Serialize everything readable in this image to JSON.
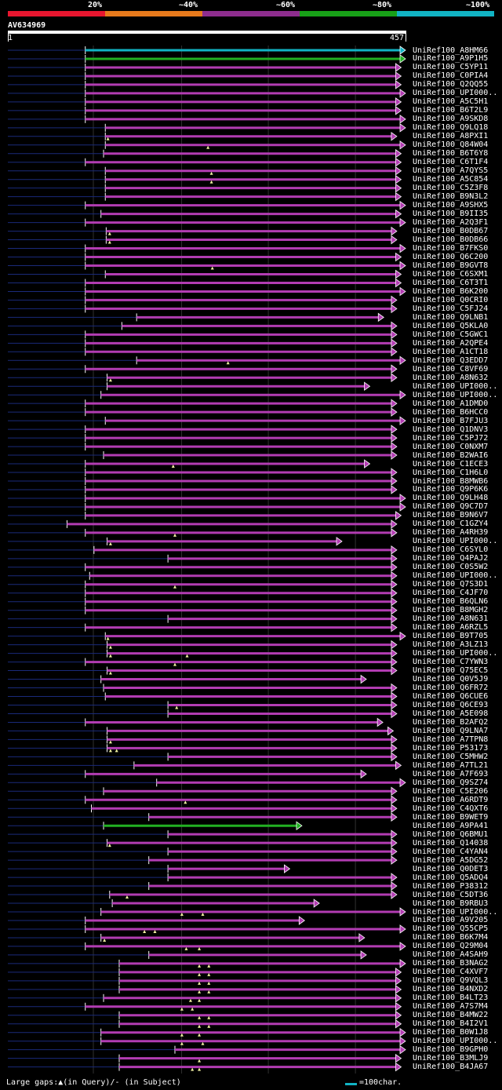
{
  "legend": {
    "labels": [
      "20%",
      "~40%",
      "~60%",
      "~80%",
      "~100%"
    ],
    "colors": [
      "#e8162f",
      "#e87a1c",
      "#8e2d8e",
      "#18a018",
      "#11b3c4"
    ]
  },
  "query": {
    "id": "AV634969",
    "length": 457,
    "start_label": "1",
    "end_label": "457"
  },
  "colors": {
    "magenta": "#b23cb2",
    "green": "#22b022",
    "cyan": "#11b3c4",
    "navy": "#1a2a7a",
    "gap": "#f0f0a0"
  },
  "hits": [
    {
      "label": "UniRef100_A8HM66",
      "color": "cyan",
      "start": 89,
      "end": 457,
      "arrow": true,
      "gaps": []
    },
    {
      "label": "UniRef100_A9P1H5",
      "color": "green",
      "start": 89,
      "end": 457,
      "arrow": true,
      "gaps": []
    },
    {
      "label": "UniRef100_C5YP11",
      "color": "magenta",
      "start": 89,
      "end": 452,
      "arrow": true,
      "gaps": []
    },
    {
      "label": "UniRef100_C0PIA4",
      "color": "magenta",
      "start": 89,
      "end": 452,
      "arrow": true,
      "gaps": []
    },
    {
      "label": "UniRef100_Q2QQ55",
      "color": "magenta",
      "start": 89,
      "end": 452,
      "arrow": true,
      "gaps": []
    },
    {
      "label": "UniRef100_UPI000..",
      "color": "magenta",
      "start": 89,
      "end": 457,
      "arrow": true,
      "gaps": []
    },
    {
      "label": "UniRef100_A5C5H1",
      "color": "magenta",
      "start": 89,
      "end": 452,
      "arrow": true,
      "gaps": []
    },
    {
      "label": "UniRef100_B6T2L9",
      "color": "magenta",
      "start": 89,
      "end": 452,
      "arrow": true,
      "gaps": []
    },
    {
      "label": "UniRef100_A9SKD8",
      "color": "magenta",
      "start": 89,
      "end": 457,
      "arrow": true,
      "gaps": []
    },
    {
      "label": "UniRef100_Q9LQ18",
      "color": "magenta",
      "start": 112,
      "end": 457,
      "arrow": true,
      "gaps": []
    },
    {
      "label": "UniRef100_A8PXI1",
      "color": "magenta",
      "start": 112,
      "end": 447,
      "arrow": true,
      "gaps": [
        115
      ]
    },
    {
      "label": "UniRef100_Q84W04",
      "color": "magenta",
      "start": 112,
      "end": 457,
      "arrow": true,
      "gaps": [
        230
      ]
    },
    {
      "label": "UniRef100_B6T6Y8",
      "color": "magenta",
      "start": 110,
      "end": 452,
      "arrow": true,
      "gaps": []
    },
    {
      "label": "UniRef100_C6T1F4",
      "color": "magenta",
      "start": 89,
      "end": 452,
      "arrow": true,
      "gaps": []
    },
    {
      "label": "UniRef100_A7QYS5",
      "color": "magenta",
      "start": 112,
      "end": 452,
      "arrow": true,
      "gaps": [
        234
      ]
    },
    {
      "label": "UniRef100_A5C854",
      "color": "magenta",
      "start": 112,
      "end": 452,
      "arrow": true,
      "gaps": [
        234
      ]
    },
    {
      "label": "UniRef100_C5Z3F8",
      "color": "magenta",
      "start": 112,
      "end": 452,
      "arrow": true,
      "gaps": []
    },
    {
      "label": "UniRef100_B9N3L2",
      "color": "magenta",
      "start": 112,
      "end": 452,
      "arrow": true,
      "gaps": []
    },
    {
      "label": "UniRef100_A9SHX5",
      "color": "magenta",
      "start": 89,
      "end": 457,
      "arrow": true,
      "gaps": []
    },
    {
      "label": "UniRef100_B9II35",
      "color": "magenta",
      "start": 107,
      "end": 452,
      "arrow": true,
      "gaps": []
    },
    {
      "label": "UniRef100_A2Q3F1",
      "color": "magenta",
      "start": 89,
      "end": 457,
      "arrow": true,
      "gaps": []
    },
    {
      "label": "UniRef100_B0DB67",
      "color": "magenta",
      "start": 113,
      "end": 447,
      "arrow": true,
      "gaps": [
        117
      ]
    },
    {
      "label": "UniRef100_B0DB66",
      "color": "magenta",
      "start": 113,
      "end": 447,
      "arrow": true,
      "gaps": [
        117
      ]
    },
    {
      "label": "UniRef100_B7FKS0",
      "color": "magenta",
      "start": 89,
      "end": 457,
      "arrow": true,
      "gaps": []
    },
    {
      "label": "UniRef100_Q6C200",
      "color": "magenta",
      "start": 89,
      "end": 452,
      "arrow": true,
      "gaps": []
    },
    {
      "label": "UniRef100_B9GVT8",
      "color": "magenta",
      "start": 89,
      "end": 457,
      "arrow": true,
      "gaps": [
        235
      ]
    },
    {
      "label": "UniRef100_C6SXM1",
      "color": "magenta",
      "start": 112,
      "end": 452,
      "arrow": true,
      "gaps": []
    },
    {
      "label": "UniRef100_C6T3T1",
      "color": "magenta",
      "start": 89,
      "end": 452,
      "arrow": true,
      "gaps": []
    },
    {
      "label": "UniRef100_B6K200",
      "color": "magenta",
      "start": 89,
      "end": 457,
      "arrow": true,
      "gaps": []
    },
    {
      "label": "UniRef100_Q0CRI0",
      "color": "magenta",
      "start": 89,
      "end": 447,
      "arrow": true,
      "gaps": []
    },
    {
      "label": "UniRef100_C5FJ24",
      "color": "magenta",
      "start": 89,
      "end": 447,
      "arrow": true,
      "gaps": []
    },
    {
      "label": "UniRef100_Q9LNB1",
      "color": "magenta",
      "start": 148,
      "end": 432,
      "arrow": true,
      "gaps": []
    },
    {
      "label": "UniRef100_Q5KLA0",
      "color": "magenta",
      "start": 131,
      "end": 447,
      "arrow": true,
      "gaps": []
    },
    {
      "label": "UniRef100_C5GWC1",
      "color": "magenta",
      "start": 89,
      "end": 447,
      "arrow": true,
      "gaps": []
    },
    {
      "label": "UniRef100_A2QPE4",
      "color": "magenta",
      "start": 89,
      "end": 447,
      "arrow": true,
      "gaps": []
    },
    {
      "label": "UniRef100_A1CT18",
      "color": "magenta",
      "start": 89,
      "end": 447,
      "arrow": true,
      "gaps": []
    },
    {
      "label": "UniRef100_Q3EDD7",
      "color": "magenta",
      "start": 148,
      "end": 457,
      "arrow": true,
      "gaps": [
        253
      ]
    },
    {
      "label": "UniRef100_C8VF69",
      "color": "magenta",
      "start": 89,
      "end": 447,
      "arrow": true,
      "gaps": []
    },
    {
      "label": "UniRef100_A8N632",
      "color": "magenta",
      "start": 114,
      "end": 447,
      "arrow": true,
      "gaps": [
        118
      ]
    },
    {
      "label": "UniRef100_UPI000..",
      "color": "magenta",
      "start": 114,
      "end": 416,
      "arrow": true,
      "gaps": []
    },
    {
      "label": "UniRef100_UPI000..",
      "color": "magenta",
      "start": 107,
      "end": 457,
      "arrow": true,
      "gaps": []
    },
    {
      "label": "UniRef100_A1DMD0",
      "color": "magenta",
      "start": 89,
      "end": 447,
      "arrow": true,
      "gaps": []
    },
    {
      "label": "UniRef100_B6HCC0",
      "color": "magenta",
      "start": 89,
      "end": 447,
      "arrow": true,
      "gaps": []
    },
    {
      "label": "UniRef100_B7FJU3",
      "color": "magenta",
      "start": 112,
      "end": 457,
      "arrow": true,
      "gaps": []
    },
    {
      "label": "UniRef100_Q1DNV3",
      "color": "magenta",
      "start": 89,
      "end": 447,
      "arrow": true,
      "gaps": []
    },
    {
      "label": "UniRef100_C5PJ72",
      "color": "magenta",
      "start": 89,
      "end": 447,
      "arrow": true,
      "gaps": []
    },
    {
      "label": "UniRef100_C0NXM7",
      "color": "magenta",
      "start": 89,
      "end": 447,
      "arrow": true,
      "gaps": []
    },
    {
      "label": "UniRef100_B2WAI6",
      "color": "magenta",
      "start": 110,
      "end": 447,
      "arrow": true,
      "gaps": []
    },
    {
      "label": "UniRef100_C1ECE3",
      "color": "magenta",
      "start": 89,
      "end": 416,
      "arrow": true,
      "gaps": [
        190
      ]
    },
    {
      "label": "UniRef100_C1H6L0",
      "color": "magenta",
      "start": 89,
      "end": 447,
      "arrow": true,
      "gaps": []
    },
    {
      "label": "UniRef100_B8MWB6",
      "color": "magenta",
      "start": 89,
      "end": 447,
      "arrow": true,
      "gaps": []
    },
    {
      "label": "UniRef100_Q9P6K6",
      "color": "magenta",
      "start": 89,
      "end": 447,
      "arrow": true,
      "gaps": []
    },
    {
      "label": "UniRef100_Q9LH48",
      "color": "magenta",
      "start": 89,
      "end": 457,
      "arrow": true,
      "gaps": []
    },
    {
      "label": "UniRef100_Q9C7D7",
      "color": "magenta",
      "start": 89,
      "end": 457,
      "arrow": true,
      "gaps": []
    },
    {
      "label": "UniRef100_B9N6V7",
      "color": "magenta",
      "start": 89,
      "end": 452,
      "arrow": true,
      "gaps": []
    },
    {
      "label": "UniRef100_C1GZY4",
      "color": "magenta",
      "start": 68,
      "end": 447,
      "arrow": true,
      "gaps": []
    },
    {
      "label": "UniRef100_A4RH39",
      "color": "magenta",
      "start": 89,
      "end": 447,
      "arrow": true,
      "gaps": [
        192
      ]
    },
    {
      "label": "UniRef100_UPI000..",
      "color": "magenta",
      "start": 114,
      "end": 384,
      "arrow": true,
      "gaps": [
        118
      ]
    },
    {
      "label": "UniRef100_C6SYL0",
      "color": "magenta",
      "start": 99,
      "end": 447,
      "arrow": true,
      "gaps": []
    },
    {
      "label": "UniRef100_Q4PAJ2",
      "color": "magenta",
      "start": 184,
      "end": 447,
      "arrow": true,
      "gaps": []
    },
    {
      "label": "UniRef100_C0S5W2",
      "color": "magenta",
      "start": 89,
      "end": 447,
      "arrow": true,
      "gaps": []
    },
    {
      "label": "UniRef100_UPI000..",
      "color": "magenta",
      "start": 94,
      "end": 447,
      "arrow": true,
      "gaps": []
    },
    {
      "label": "UniRef100_Q7S3D1",
      "color": "magenta",
      "start": 89,
      "end": 447,
      "arrow": true,
      "gaps": [
        192
      ]
    },
    {
      "label": "UniRef100_C4JF70",
      "color": "magenta",
      "start": 89,
      "end": 447,
      "arrow": true,
      "gaps": []
    },
    {
      "label": "UniRef100_B6QLN6",
      "color": "magenta",
      "start": 89,
      "end": 447,
      "arrow": true,
      "gaps": []
    },
    {
      "label": "UniRef100_B8MGH2",
      "color": "magenta",
      "start": 89,
      "end": 447,
      "arrow": true,
      "gaps": []
    },
    {
      "label": "UniRef100_A8N631",
      "color": "magenta",
      "start": 184,
      "end": 447,
      "arrow": true,
      "gaps": []
    },
    {
      "label": "UniRef100_A6RZL5",
      "color": "magenta",
      "start": 89,
      "end": 447,
      "arrow": true,
      "gaps": []
    },
    {
      "label": "UniRef100_B9T705",
      "color": "magenta",
      "start": 112,
      "end": 457,
      "arrow": true,
      "gaps": [
        115
      ]
    },
    {
      "label": "UniRef100_A3LZ13",
      "color": "magenta",
      "start": 114,
      "end": 447,
      "arrow": true,
      "gaps": [
        118
      ]
    },
    {
      "label": "UniRef100_UPI000..",
      "color": "magenta",
      "start": 114,
      "end": 447,
      "arrow": true,
      "gaps": [
        118,
        206
      ]
    },
    {
      "label": "UniRef100_C7YWN3",
      "color": "magenta",
      "start": 89,
      "end": 447,
      "arrow": true,
      "gaps": [
        192
      ]
    },
    {
      "label": "UniRef100_Q75EC5",
      "color": "magenta",
      "start": 114,
      "end": 447,
      "arrow": true,
      "gaps": [
        118
      ]
    },
    {
      "label": "UniRef100_Q0V5J9",
      "color": "magenta",
      "start": 107,
      "end": 412,
      "arrow": true,
      "gaps": []
    },
    {
      "label": "UniRef100_Q6FR72",
      "color": "magenta",
      "start": 110,
      "end": 447,
      "arrow": true,
      "gaps": []
    },
    {
      "label": "UniRef100_Q6CUE6",
      "color": "magenta",
      "start": 112,
      "end": 447,
      "arrow": true,
      "gaps": []
    },
    {
      "label": "UniRef100_Q6CE93",
      "color": "magenta",
      "start": 184,
      "end": 447,
      "arrow": true,
      "gaps": [
        194
      ]
    },
    {
      "label": "UniRef100_A5E098",
      "color": "magenta",
      "start": 184,
      "end": 447,
      "arrow": true,
      "gaps": []
    },
    {
      "label": "UniRef100_B2AFQ2",
      "color": "magenta",
      "start": 89,
      "end": 431,
      "arrow": true,
      "gaps": []
    },
    {
      "label": "UniRef100_Q9LNA7",
      "color": "magenta",
      "start": 114,
      "end": 443,
      "arrow": true,
      "gaps": []
    },
    {
      "label": "UniRef100_A7TPN8",
      "color": "magenta",
      "start": 114,
      "end": 447,
      "arrow": true,
      "gaps": [
        118
      ]
    },
    {
      "label": "UniRef100_P53173",
      "color": "magenta",
      "start": 114,
      "end": 447,
      "arrow": true,
      "gaps": [
        118,
        125
      ]
    },
    {
      "label": "UniRef100_C5MHW2",
      "color": "magenta",
      "start": 184,
      "end": 447,
      "arrow": true,
      "gaps": []
    },
    {
      "label": "UniRef100_A7TL21",
      "color": "magenta",
      "start": 145,
      "end": 452,
      "arrow": true,
      "gaps": []
    },
    {
      "label": "UniRef100_A7F693",
      "color": "magenta",
      "start": 89,
      "end": 412,
      "arrow": true,
      "gaps": []
    },
    {
      "label": "UniRef100_Q9SZ74",
      "color": "magenta",
      "start": 171,
      "end": 457,
      "arrow": true,
      "gaps": []
    },
    {
      "label": "UniRef100_C5E206",
      "color": "magenta",
      "start": 110,
      "end": 447,
      "arrow": true,
      "gaps": []
    },
    {
      "label": "UniRef100_A6RDT9",
      "color": "magenta",
      "start": 89,
      "end": 447,
      "arrow": true,
      "gaps": [
        204
      ]
    },
    {
      "label": "UniRef100_C4QXT6",
      "color": "magenta",
      "start": 96,
      "end": 447,
      "arrow": true,
      "gaps": []
    },
    {
      "label": "UniRef100_B9WET9",
      "color": "magenta",
      "start": 162,
      "end": 447,
      "arrow": true,
      "gaps": []
    },
    {
      "label": "UniRef100_A9PA41",
      "color": "green",
      "start": 110,
      "end": 338,
      "arrow": true,
      "gaps": []
    },
    {
      "label": "UniRef100_Q6BMU1",
      "color": "magenta",
      "start": 184,
      "end": 447,
      "arrow": true,
      "gaps": []
    },
    {
      "label": "UniRef100_Q14038",
      "color": "magenta",
      "start": 114,
      "end": 447,
      "arrow": true,
      "gaps": [
        117
      ]
    },
    {
      "label": "UniRef100_C4YAN4",
      "color": "magenta",
      "start": 184,
      "end": 447,
      "arrow": true,
      "gaps": []
    },
    {
      "label": "UniRef100_A5DG52",
      "color": "magenta",
      "start": 162,
      "end": 447,
      "arrow": true,
      "gaps": []
    },
    {
      "label": "UniRef100_Q0DET3",
      "color": "magenta",
      "start": 184,
      "end": 324,
      "arrow": true,
      "gaps": []
    },
    {
      "label": "UniRef100_Q5ADQ4",
      "color": "magenta",
      "start": 184,
      "end": 447,
      "arrow": true,
      "gaps": []
    },
    {
      "label": "UniRef100_P38312",
      "color": "magenta",
      "start": 162,
      "end": 447,
      "arrow": true,
      "gaps": []
    },
    {
      "label": "UniRef100_C5DT36",
      "color": "magenta",
      "start": 117,
      "end": 447,
      "arrow": true,
      "gaps": [
        137
      ]
    },
    {
      "label": "UniRef100_B9RBU3",
      "color": "magenta",
      "start": 120,
      "end": 358,
      "arrow": true,
      "gaps": []
    },
    {
      "label": "UniRef100_UPI000..",
      "color": "magenta",
      "start": 107,
      "end": 457,
      "arrow": true,
      "gaps": [
        200,
        224
      ]
    },
    {
      "label": "UniRef100_A9V205",
      "color": "magenta",
      "start": 89,
      "end": 341,
      "arrow": true,
      "gaps": []
    },
    {
      "label": "UniRef100_Q55CP5",
      "color": "magenta",
      "start": 89,
      "end": 457,
      "arrow": true,
      "gaps": [
        157,
        169
      ]
    },
    {
      "label": "UniRef100_B6K7M4",
      "color": "magenta",
      "start": 107,
      "end": 410,
      "arrow": true,
      "gaps": [
        111
      ]
    },
    {
      "label": "UniRef100_Q29M04",
      "color": "magenta",
      "start": 89,
      "end": 457,
      "arrow": true,
      "gaps": [
        205,
        220
      ]
    },
    {
      "label": "UniRef100_A4SAH9",
      "color": "magenta",
      "start": 162,
      "end": 412,
      "arrow": true,
      "gaps": []
    },
    {
      "label": "UniRef100_B3NAG2",
      "color": "magenta",
      "start": 128,
      "end": 457,
      "arrow": true,
      "gaps": [
        220,
        231
      ]
    },
    {
      "label": "UniRef100_C4XVF7",
      "color": "magenta",
      "start": 128,
      "end": 452,
      "arrow": true,
      "gaps": [
        220,
        231
      ]
    },
    {
      "label": "UniRef100_Q9VQL3",
      "color": "magenta",
      "start": 128,
      "end": 452,
      "arrow": true,
      "gaps": [
        220,
        231
      ]
    },
    {
      "label": "UniRef100_B4NXD2",
      "color": "magenta",
      "start": 128,
      "end": 452,
      "arrow": true,
      "gaps": [
        220,
        231
      ]
    },
    {
      "label": "UniRef100_B4LT23",
      "color": "magenta",
      "start": 110,
      "end": 452,
      "arrow": true,
      "gaps": [
        210,
        220
      ]
    },
    {
      "label": "UniRef100_A7S7M4",
      "color": "magenta",
      "start": 89,
      "end": 452,
      "arrow": true,
      "gaps": [
        200,
        212
      ]
    },
    {
      "label": "UniRef100_B4MW22",
      "color": "magenta",
      "start": 128,
      "end": 452,
      "arrow": true,
      "gaps": [
        220,
        231
      ]
    },
    {
      "label": "UniRef100_B4I2V1",
      "color": "magenta",
      "start": 128,
      "end": 452,
      "arrow": true,
      "gaps": [
        220,
        231
      ]
    },
    {
      "label": "UniRef100_B0W1J8",
      "color": "magenta",
      "start": 107,
      "end": 457,
      "arrow": true,
      "gaps": [
        200,
        220
      ]
    },
    {
      "label": "UniRef100_UPI000..",
      "color": "magenta",
      "start": 107,
      "end": 457,
      "arrow": true,
      "gaps": [
        200,
        224
      ]
    },
    {
      "label": "UniRef100_B9GPH0",
      "color": "magenta",
      "start": 192,
      "end": 457,
      "arrow": true,
      "gaps": []
    },
    {
      "label": "UniRef100_B3MLJ9",
      "color": "magenta",
      "start": 128,
      "end": 452,
      "arrow": true,
      "gaps": [
        220
      ]
    },
    {
      "label": "UniRef100_B4JA67",
      "color": "magenta",
      "start": 128,
      "end": 452,
      "arrow": true,
      "gaps": [
        212,
        220
      ]
    }
  ],
  "footer": {
    "text": "Large gaps:▲(in Query)/- (in Subject)",
    "scale_text": "=100char."
  }
}
